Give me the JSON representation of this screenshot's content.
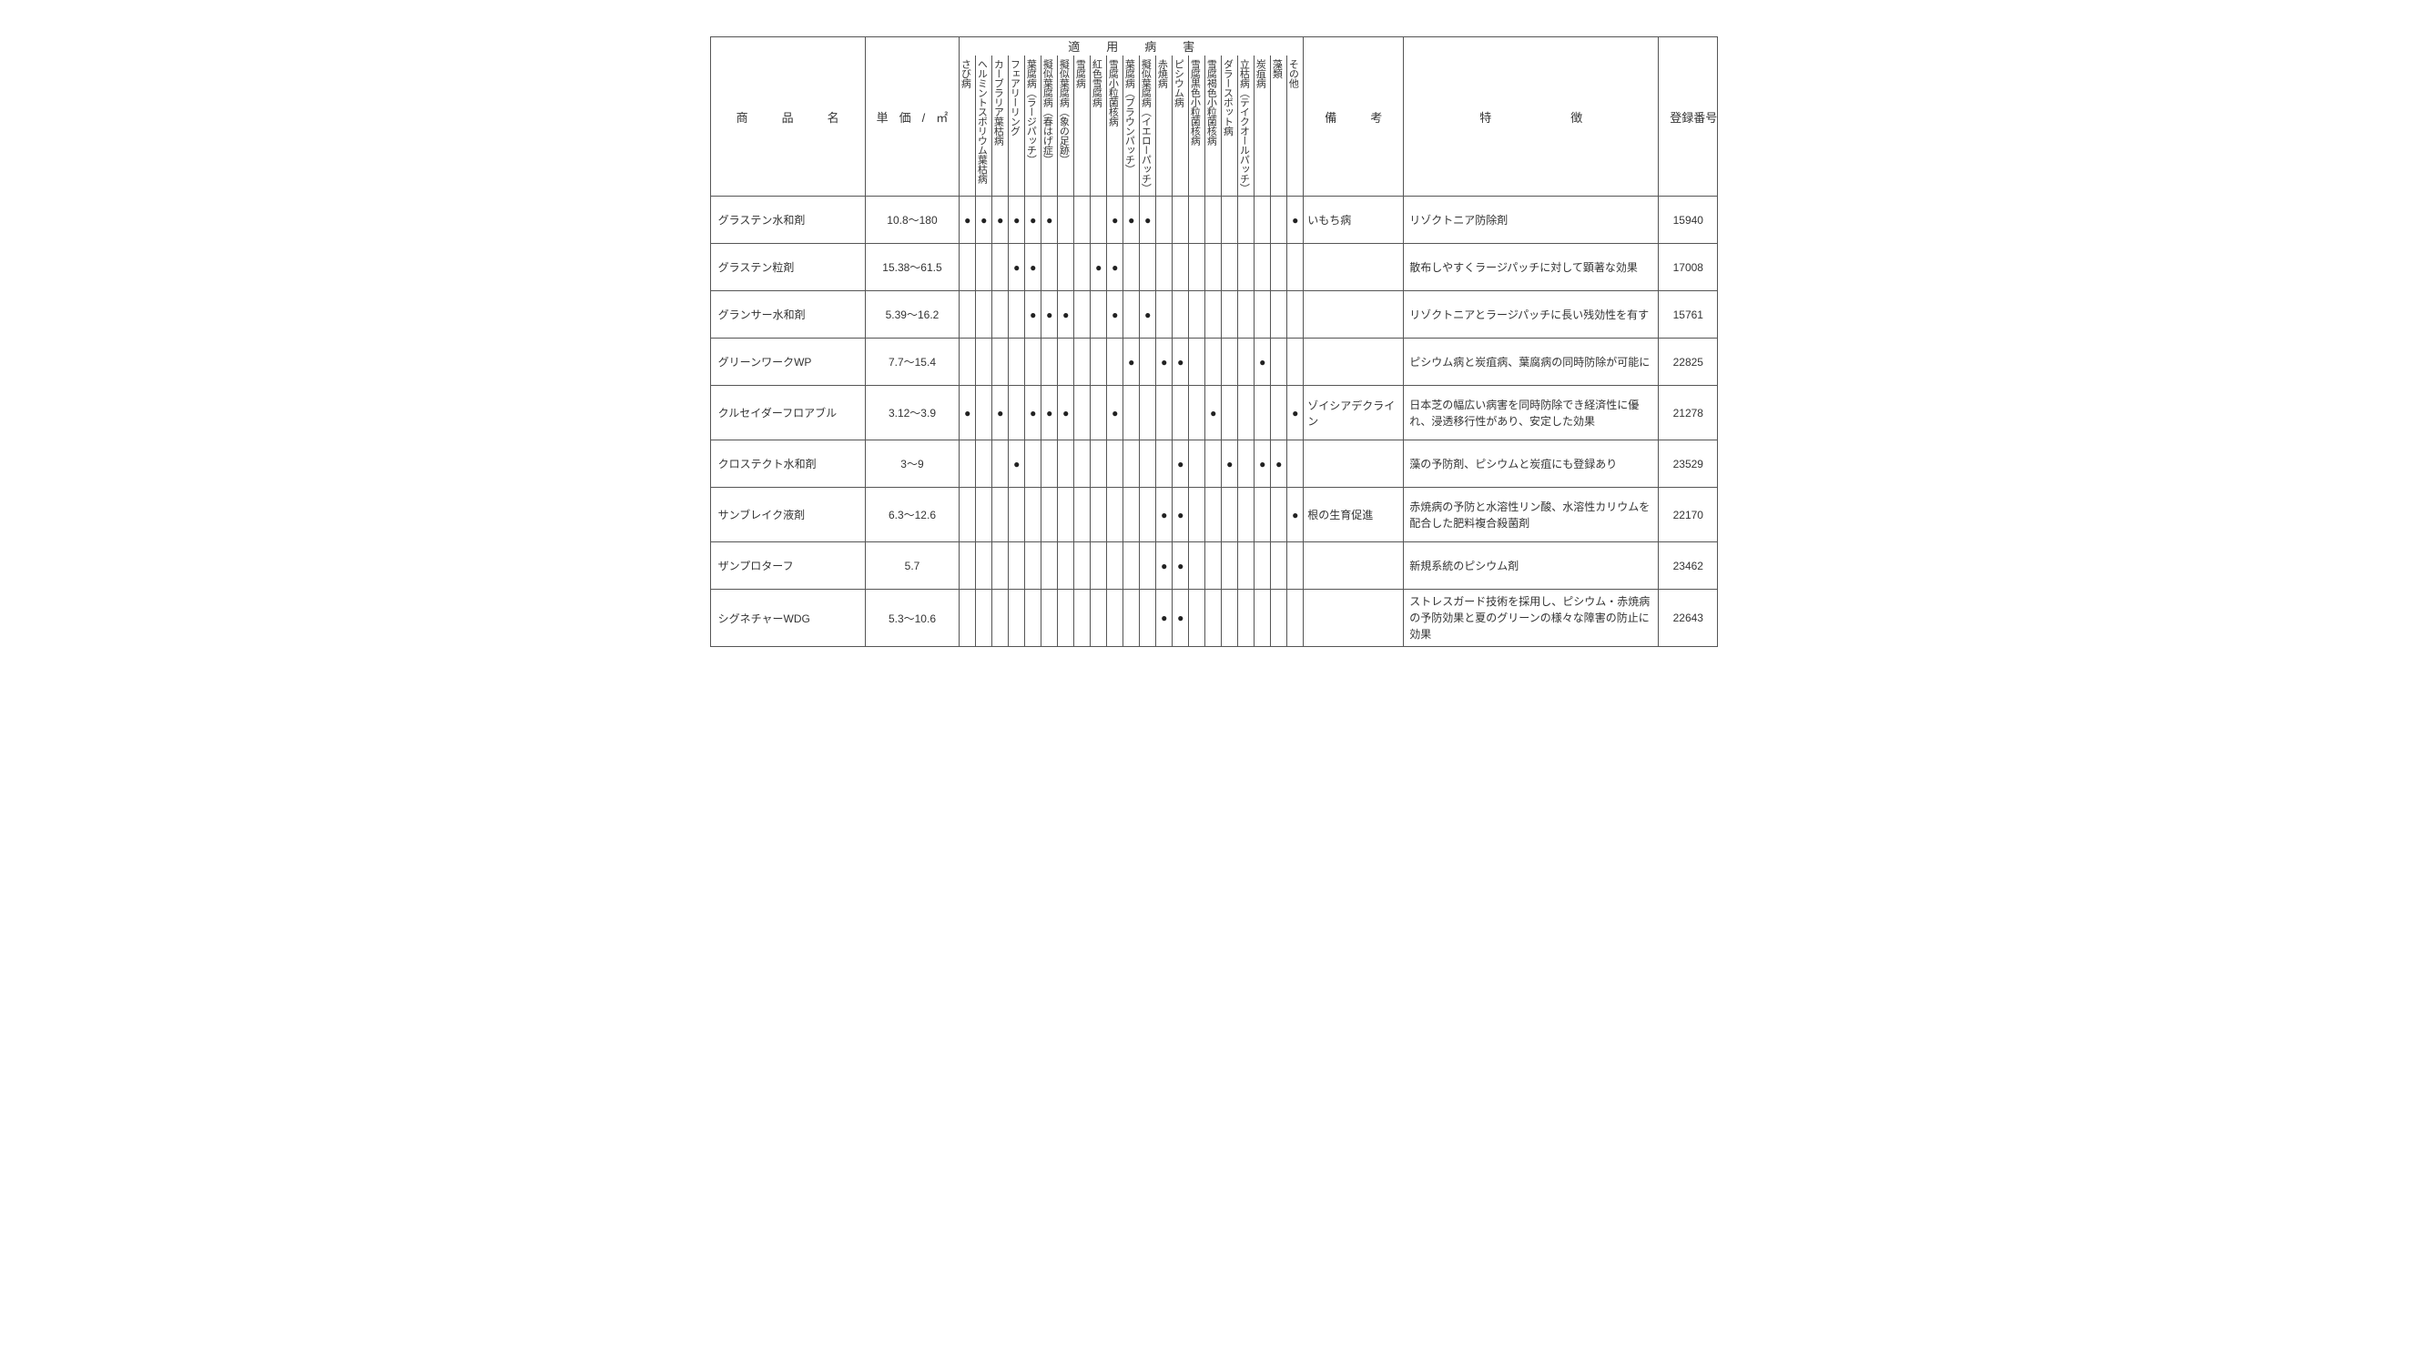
{
  "headers": {
    "product": "商　品　名",
    "price": "単価/㎡",
    "disease_group": "適　用　病　害",
    "remarks": "備　考",
    "features": "特　　　徴",
    "reg": "登録番号"
  },
  "disease_cols": [
    "さび病",
    "ヘルミントスポリウム葉枯病",
    "カーブラリア葉枯病",
    "フェアリーリング",
    "葉腐病（ラージパッチ）",
    "擬似葉腐病（春はげ症）",
    "擬似葉腐病（象の足跡）",
    "雪腐病",
    "紅色雪腐病",
    "雪腐小粒菌核病",
    "葉腐病（ブラウンパッチ）",
    "擬似葉腐病（イエローパッチ）",
    "赤焼病",
    "ピシウム病",
    "雪腐黒色小粒菌核病",
    "雪腐褐色小粒菌核病",
    "ダラースポット病",
    "立枯病（テイクオールパッチ）",
    "炭疽病",
    "藻類",
    "その他"
  ],
  "rows": [
    {
      "name": "グラステン水和剤",
      "price": "10.8～180",
      "dots": [
        1,
        1,
        1,
        1,
        1,
        1,
        0,
        0,
        0,
        1,
        1,
        1,
        0,
        0,
        0,
        0,
        0,
        0,
        0,
        0,
        1
      ],
      "remark": "いもち病",
      "feature": "リゾクトニア防除剤",
      "reg": "15940"
    },
    {
      "name": "グラステン粒剤",
      "price": "15.38～61.5",
      "dots": [
        0,
        0,
        0,
        1,
        1,
        0,
        0,
        0,
        1,
        1,
        0,
        0,
        0,
        0,
        0,
        0,
        0,
        0,
        0,
        0,
        0
      ],
      "remark": "",
      "feature": "散布しやすくラージパッチに対して顕著な効果",
      "reg": "17008"
    },
    {
      "name": "グランサー水和剤",
      "price": "5.39～16.2",
      "dots": [
        0,
        0,
        0,
        0,
        1,
        1,
        1,
        0,
        0,
        1,
        0,
        1,
        0,
        0,
        0,
        0,
        0,
        0,
        0,
        0,
        0
      ],
      "remark": "",
      "feature": "リゾクトニアとラージパッチに長い残効性を有す",
      "reg": "15761"
    },
    {
      "name": "グリーンワークWP",
      "price": "7.7～15.4",
      "dots": [
        0,
        0,
        0,
        0,
        0,
        0,
        0,
        0,
        0,
        0,
        1,
        0,
        1,
        1,
        0,
        0,
        0,
        0,
        1,
        0,
        0
      ],
      "remark": "",
      "feature": "ピシウム病と炭疽病、葉腐病の同時防除が可能に",
      "reg": "22825"
    },
    {
      "name": "クルセイダーフロアブル",
      "price": "3.12～3.9",
      "dots": [
        1,
        0,
        1,
        0,
        1,
        1,
        1,
        0,
        0,
        1,
        0,
        0,
        0,
        0,
        0,
        1,
        0,
        0,
        0,
        0,
        1
      ],
      "remark": "ゾイシアデクライン",
      "feature": "日本芝の幅広い病害を同時防除でき経済性に優れ、浸透移行性があり、安定した効果",
      "reg": "21278",
      "tall": true
    },
    {
      "name": "クロステクト水和剤",
      "price": "3～9",
      "dots": [
        0,
        0,
        0,
        1,
        0,
        0,
        0,
        0,
        0,
        0,
        0,
        0,
        0,
        1,
        0,
        0,
        1,
        0,
        1,
        1,
        0
      ],
      "remark": "",
      "feature": "藻の予防剤、ピシウムと炭疽にも登録あり",
      "reg": "23529"
    },
    {
      "name": "サンブレイク液剤",
      "price": "6.3～12.6",
      "dots": [
        0,
        0,
        0,
        0,
        0,
        0,
        0,
        0,
        0,
        0,
        0,
        0,
        1,
        1,
        0,
        0,
        0,
        0,
        0,
        0,
        1
      ],
      "remark": "根の生育促進",
      "feature": "赤焼病の予防と水溶性リン酸、水溶性カリウムを配合した肥料複合殺菌剤",
      "reg": "22170",
      "tall": true
    },
    {
      "name": "ザンプロターフ",
      "price": "5.7",
      "dots": [
        0,
        0,
        0,
        0,
        0,
        0,
        0,
        0,
        0,
        0,
        0,
        0,
        1,
        1,
        0,
        0,
        0,
        0,
        0,
        0,
        0
      ],
      "remark": "",
      "feature": "新規系統のピシウム剤",
      "reg": "23462"
    },
    {
      "name": "シグネチャーWDG",
      "price": "5.3～10.6",
      "dots": [
        0,
        0,
        0,
        0,
        0,
        0,
        0,
        0,
        0,
        0,
        0,
        0,
        1,
        1,
        0,
        0,
        0,
        0,
        0,
        0,
        0
      ],
      "remark": "",
      "feature": "ストレスガード技術を採用し、ピシウム・赤焼病の予防効果と夏のグリーンの様々な障害の防止に効果",
      "reg": "22643",
      "tall": true
    }
  ],
  "style": {
    "dot_char": "●",
    "dot_color": "#222",
    "border_color": "#555",
    "bg": "#ffffff",
    "font_main": 13,
    "font_small": 11
  }
}
